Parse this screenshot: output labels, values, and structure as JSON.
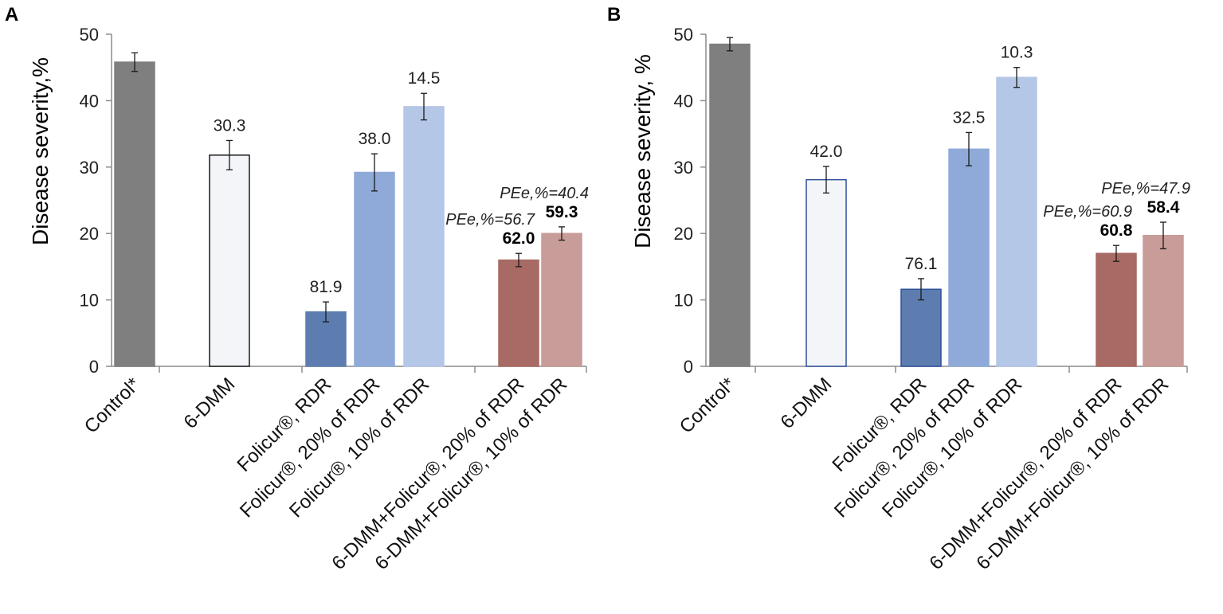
{
  "figure": {
    "panels": [
      "A",
      "B"
    ]
  },
  "chart_data": [
    {
      "panel": "A",
      "type": "bar",
      "ylabel": "Disease severity,%",
      "ylim": [
        0,
        50
      ],
      "yticks": [
        "0",
        "10",
        "20",
        "30",
        "40",
        "50"
      ],
      "categories": [
        "Control*",
        "6-DMM",
        "Folicur®, RDR",
        "Folicur®, 20% of RDR",
        "Folicur®, 10% of RDR",
        "6-DMM+Folicur®, 20% of RDR",
        "6-DMM+Folicur®, 10% of RDR"
      ],
      "values": [
        45.8,
        31.8,
        8.2,
        29.2,
        39.1,
        16.0,
        20.0
      ],
      "errors": [
        1.4,
        2.2,
        1.5,
        2.8,
        2.0,
        1.0,
        1.0
      ],
      "value_labels": [
        null,
        "30.3",
        "81.9",
        "38.0",
        "14.5",
        "62.0",
        "59.3"
      ],
      "value_labels_bold": [
        false,
        false,
        false,
        false,
        false,
        true,
        true
      ],
      "pee_labels": [
        null,
        null,
        null,
        null,
        null,
        "PEe,%=56.7",
        "PEe,%=40.4"
      ],
      "bar_colors": [
        "#7f7f7f",
        "#f4f5f8",
        "#5d7db0",
        "#8faad8",
        "#b5c7e6",
        "#a86a64",
        "#c89c98"
      ],
      "bar_edges": [
        "#7f7f7f",
        "#1a1a1a",
        "#5d7db0",
        "#8faad8",
        "#b5c7e6",
        "#a86a64",
        "#c89c98"
      ]
    },
    {
      "panel": "B",
      "type": "bar",
      "ylabel": "Disease severity, %",
      "ylim": [
        0,
        50
      ],
      "yticks": [
        "0",
        "10",
        "20",
        "30",
        "40",
        "50"
      ],
      "categories": [
        "Control*",
        "6-DMM",
        "Folicur®, RDR",
        "Folicur®, 20% of RDR",
        "Folicur®, 10% of RDR",
        "6-DMM+Folicur®, 20% of RDR",
        "6-DMM+Folicur®, 10% of RDR"
      ],
      "values": [
        48.5,
        28.1,
        11.6,
        32.7,
        43.5,
        17.0,
        19.7
      ],
      "errors": [
        1.0,
        2.0,
        1.6,
        2.5,
        1.5,
        1.2,
        2.0
      ],
      "value_labels": [
        null,
        "42.0",
        "76.1",
        "32.5",
        "10.3",
        "60.8",
        "58.4"
      ],
      "value_labels_bold": [
        false,
        false,
        false,
        false,
        false,
        true,
        true
      ],
      "pee_labels": [
        null,
        null,
        null,
        null,
        null,
        "PEe,%=60.9",
        "PEe,%=47.9"
      ],
      "bar_colors": [
        "#7f7f7f",
        "#f4f5f8",
        "#5d7db0",
        "#8faad8",
        "#b5c7e6",
        "#a86a64",
        "#c89c98"
      ],
      "bar_edges": [
        "#7f7f7f",
        "#2f4f9a",
        "#2f4f9a",
        "#8faad8",
        "#b5c7e6",
        "#a86a64",
        "#c89c98"
      ]
    }
  ]
}
